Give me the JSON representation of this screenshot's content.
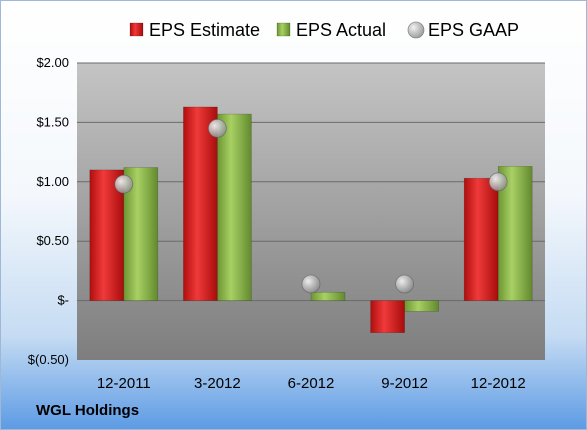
{
  "company_name": "WGL Holdings",
  "chart_data": {
    "type": "bar",
    "categories": [
      "12-2011",
      "3-2012",
      "6-2012",
      "9-2012",
      "12-2012"
    ],
    "series": [
      {
        "name": "EPS Estimate",
        "values": [
          1.1,
          1.63,
          null,
          -0.27,
          1.03
        ],
        "color": "#d42020",
        "kind": "bar"
      },
      {
        "name": "EPS Actual",
        "values": [
          1.12,
          1.57,
          0.07,
          -0.09,
          1.13
        ],
        "color": "#8db84a",
        "kind": "bar"
      },
      {
        "name": "EPS GAAP",
        "values": [
          0.98,
          1.45,
          0.14,
          0.14,
          1.0
        ],
        "color": "#b8b8b8",
        "kind": "marker"
      }
    ],
    "ylim": [
      -0.5,
      2.0
    ],
    "yticks": [
      {
        "value": 2.0,
        "label": "$2.00"
      },
      {
        "value": 1.5,
        "label": "$1.50"
      },
      {
        "value": 1.0,
        "label": "$1.00"
      },
      {
        "value": 0.5,
        "label": "$0.50"
      },
      {
        "value": 0.0,
        "label": "$-"
      },
      {
        "value": -0.5,
        "label": "$(0.50)"
      }
    ],
    "legend_position": "top",
    "grid": true
  }
}
